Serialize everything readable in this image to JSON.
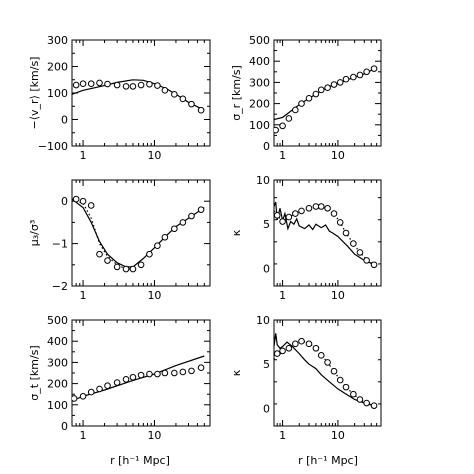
{
  "figure": {
    "xlabel": "r [h⁻¹ Mpc]"
  },
  "chart_data": [
    {
      "type": "line",
      "panel": "left-1",
      "ylabel": "−⟨v_r⟩ [km/s]",
      "xscale": "log",
      "xlim": [
        0.7,
        60
      ],
      "ylim": [
        -100,
        300
      ],
      "xticks": [
        1,
        10
      ],
      "yticks": [
        -100,
        0,
        100,
        200,
        300
      ],
      "series": [
        {
          "style": "solid",
          "x": [
            0.7,
            1,
            2,
            3,
            5,
            7,
            10,
            15,
            20,
            30,
            50
          ],
          "y": [
            95,
            110,
            128,
            140,
            150,
            148,
            135,
            115,
            95,
            65,
            35
          ]
        },
        {
          "style": "points",
          "x": [
            0.8,
            1,
            1.3,
            1.7,
            2.2,
            3,
            4,
            5,
            6.5,
            8.5,
            11,
            14,
            19,
            25,
            33,
            45
          ],
          "y": [
            130,
            135,
            135,
            138,
            134,
            130,
            125,
            125,
            130,
            133,
            128,
            110,
            95,
            78,
            58,
            35
          ]
        }
      ]
    },
    {
      "type": "line",
      "panel": "right-1",
      "ylabel": "σ_r [km/s]",
      "xscale": "log",
      "xlim": [
        0.7,
        60
      ],
      "ylim": [
        0,
        500
      ],
      "xticks": [
        1,
        10
      ],
      "yticks": [
        0,
        100,
        200,
        300,
        400,
        500
      ],
      "series": [
        {
          "style": "solid",
          "x": [
            0.7,
            1,
            1.5,
            2,
            3,
            5,
            7,
            10,
            20,
            30,
            50
          ],
          "y": [
            125,
            135,
            170,
            195,
            225,
            260,
            280,
            295,
            325,
            340,
            370
          ]
        },
        {
          "style": "points",
          "x": [
            0.75,
            1,
            1.3,
            1.7,
            2.2,
            3,
            4,
            5,
            6.5,
            8.5,
            11,
            14,
            19,
            25,
            33,
            45
          ],
          "y": [
            75,
            95,
            130,
            170,
            200,
            225,
            245,
            265,
            275,
            290,
            300,
            315,
            325,
            335,
            350,
            365
          ]
        }
      ]
    },
    {
      "type": "line",
      "panel": "left-2",
      "ylabel": "μ₃/σ³",
      "xscale": "log",
      "xlim": [
        0.7,
        60
      ],
      "ylim": [
        -2,
        0.5
      ],
      "xticks": [
        1,
        10
      ],
      "yticks": [
        -2,
        -1,
        0
      ],
      "series": [
        {
          "style": "solid",
          "x": [
            0.7,
            1,
            1.3,
            1.7,
            2.2,
            3,
            4,
            5,
            7,
            10,
            15,
            20,
            30,
            50
          ],
          "y": [
            0.05,
            -0.15,
            -0.5,
            -0.95,
            -1.25,
            -1.45,
            -1.55,
            -1.55,
            -1.35,
            -1.1,
            -0.8,
            -0.6,
            -0.4,
            -0.15
          ]
        },
        {
          "style": "dotted",
          "x": [
            0.7,
            1,
            1.3,
            1.7,
            2.2,
            3,
            4,
            5
          ],
          "y": [
            0.05,
            -0.05,
            -0.4,
            -1.0,
            -1.3,
            -1.5,
            -1.6,
            -1.6
          ]
        },
        {
          "style": "points",
          "x": [
            0.8,
            1,
            1.3,
            1.7,
            2.2,
            3,
            4,
            5,
            6.5,
            8.5,
            11,
            14,
            19,
            25,
            33,
            45
          ],
          "y": [
            0.05,
            0.0,
            -0.1,
            -1.25,
            -1.4,
            -1.55,
            -1.6,
            -1.6,
            -1.5,
            -1.25,
            -1.05,
            -0.85,
            -0.65,
            -0.5,
            -0.35,
            -0.2
          ]
        }
      ]
    },
    {
      "type": "line",
      "panel": "right-2",
      "ylabel": "κ",
      "xscale": "log",
      "xlim": [
        0.7,
        60
      ],
      "ylim": [
        -2,
        10
      ],
      "xticks": [
        1,
        10
      ],
      "yticks": [
        0,
        5,
        10
      ],
      "series": [
        {
          "style": "solid",
          "x": [
            0.7,
            0.75,
            0.8,
            0.9,
            1,
            1.1,
            1.25,
            1.4,
            1.6,
            1.8,
            2,
            2.5,
            3,
            3.5,
            4,
            5,
            6,
            7,
            8,
            10,
            15,
            20,
            30,
            50
          ],
          "y": [
            7.0,
            7.5,
            5.5,
            6.8,
            5.4,
            6.2,
            4.5,
            5.3,
            5.0,
            5.6,
            4.8,
            4.5,
            4.9,
            4.4,
            5.0,
            4.6,
            4.9,
            4.2,
            4.0,
            3.6,
            2.5,
            1.6,
            0.9,
            0.3
          ]
        },
        {
          "style": "dotted",
          "x": [
            0.7,
            0.8,
            1,
            1.3,
            1.7,
            2.2,
            3,
            4,
            5,
            6.5,
            8.5,
            11,
            14,
            19,
            25,
            33,
            45
          ],
          "y": [
            6.5,
            6.0,
            5.3,
            5.8,
            6.2,
            6.5,
            6.8,
            7.0,
            7.0,
            6.8,
            6.2,
            5.2,
            4.0,
            2.8,
            1.8,
            1.0,
            0.4
          ]
        },
        {
          "style": "points",
          "x": [
            0.8,
            1,
            1.3,
            1.7,
            2.2,
            3,
            4,
            5,
            6.5,
            8.5,
            11,
            14,
            19,
            25,
            33,
            45
          ],
          "y": [
            6.0,
            5.3,
            5.8,
            6.2,
            6.5,
            6.8,
            7.0,
            7.0,
            6.8,
            6.2,
            5.2,
            4.0,
            2.8,
            1.8,
            0.9,
            0.4
          ]
        }
      ]
    },
    {
      "type": "line",
      "panel": "left-3",
      "ylabel": "σ_t [km/s]",
      "xscale": "log",
      "xlim": [
        0.7,
        60
      ],
      "ylim": [
        0,
        500
      ],
      "xticks": [
        1,
        10
      ],
      "yticks": [
        0,
        100,
        200,
        300,
        400,
        500
      ],
      "series": [
        {
          "style": "solid",
          "x": [
            0.7,
            1,
            2,
            5,
            10,
            20,
            50
          ],
          "y": [
            120,
            140,
            170,
            215,
            245,
            285,
            330
          ]
        },
        {
          "style": "points",
          "x": [
            0.75,
            1,
            1.3,
            1.7,
            2.2,
            3,
            4,
            5,
            6.5,
            8.5,
            11,
            14,
            19,
            25,
            33,
            45
          ],
          "y": [
            130,
            140,
            160,
            175,
            190,
            205,
            220,
            230,
            240,
            245,
            245,
            250,
            250,
            255,
            260,
            275
          ]
        }
      ]
    },
    {
      "type": "line",
      "panel": "right-3",
      "ylabel": "κ",
      "xscale": "log",
      "xlim": [
        0.7,
        60
      ],
      "ylim": [
        -2,
        10
      ],
      "xticks": [
        1,
        10
      ],
      "yticks": [
        0,
        5,
        10
      ],
      "series": [
        {
          "style": "solid",
          "x": [
            0.7,
            0.75,
            0.8,
            0.9,
            1,
            1.2,
            1.5,
            2,
            2.5,
            3,
            4,
            5,
            7,
            10,
            15,
            20,
            30,
            50
          ],
          "y": [
            7.0,
            8.5,
            7.2,
            6.8,
            7.0,
            7.5,
            7.0,
            6.2,
            5.5,
            5.0,
            4.5,
            3.8,
            3.0,
            2.2,
            1.5,
            1.0,
            0.6,
            0.2
          ]
        },
        {
          "style": "dotted",
          "x": [
            0.7,
            0.8,
            1,
            1.3,
            1.7,
            2.2,
            3,
            4,
            5,
            6.5,
            8.5,
            11,
            14,
            19,
            25,
            33,
            45
          ],
          "y": [
            5.5,
            6.0,
            6.3,
            6.8,
            7.3,
            7.6,
            7.4,
            6.8,
            6.0,
            5.2,
            4.2,
            3.2,
            2.4,
            1.6,
            1.0,
            0.6,
            0.3
          ]
        },
        {
          "style": "points",
          "x": [
            0.8,
            1,
            1.3,
            1.7,
            2.2,
            3,
            4,
            5,
            6.5,
            8.5,
            11,
            14,
            19,
            25,
            33,
            45
          ],
          "y": [
            6.2,
            6.5,
            6.8,
            7.3,
            7.6,
            7.3,
            6.8,
            6.0,
            5.2,
            4.2,
            3.2,
            2.4,
            1.6,
            1.0,
            0.6,
            0.3
          ]
        }
      ]
    }
  ]
}
